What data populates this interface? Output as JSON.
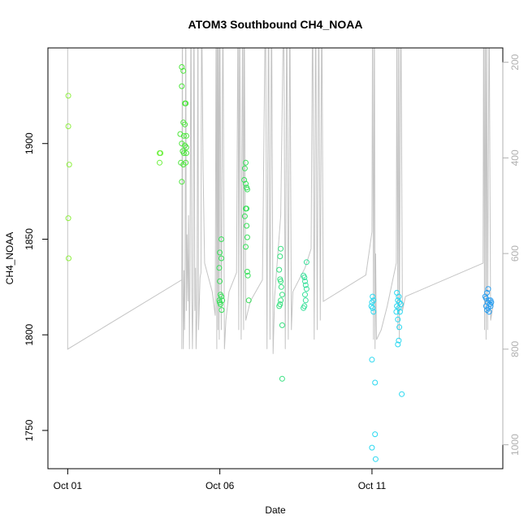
{
  "chart_data": {
    "type": "scatter",
    "title": "ATOM3 Southbound CH4_NOAA",
    "xlabel": "Date",
    "ylabel": "CH4_NOAA",
    "xlim": [
      -0.65,
      14.3
    ],
    "ylim": [
      1730,
      1950
    ],
    "y2lim": [
      1050,
      170
    ],
    "x_ticks": [
      {
        "value": 0,
        "label": "Oct 01"
      },
      {
        "value": 5,
        "label": "Oct 06"
      },
      {
        "value": 10,
        "label": "Oct 11"
      }
    ],
    "y_ticks": [
      {
        "value": 1750,
        "label": "1750"
      },
      {
        "value": 1800,
        "label": "1800"
      },
      {
        "value": 1850,
        "label": "1850"
      },
      {
        "value": 1900,
        "label": "1900"
      }
    ],
    "y2_ticks": [
      {
        "value": 200,
        "label": "200"
      },
      {
        "value": 400,
        "label": "400"
      },
      {
        "value": 600,
        "label": "600"
      },
      {
        "value": 800,
        "label": "800"
      },
      {
        "value": 1000,
        "label": "1000"
      }
    ],
    "pressure_trace": [
      [
        0,
        50
      ],
      [
        0,
        800
      ],
      [
        3.75,
        655
      ],
      [
        3.75,
        800
      ],
      [
        3.75,
        645
      ],
      [
        3.77,
        55
      ],
      [
        3.78,
        645
      ],
      [
        3.8,
        800
      ],
      [
        3.82,
        635
      ],
      [
        3.84,
        760
      ],
      [
        3.86,
        610
      ],
      [
        3.88,
        55
      ],
      [
        3.9,
        720
      ],
      [
        3.92,
        560
      ],
      [
        3.95,
        700
      ],
      [
        3.97,
        520
      ],
      [
        4.0,
        800
      ],
      [
        4.02,
        620
      ],
      [
        4.05,
        55
      ],
      [
        4.08,
        700
      ],
      [
        4.1,
        800
      ],
      [
        4.12,
        690
      ],
      [
        4.15,
        55
      ],
      [
        4.18,
        720
      ],
      [
        4.2,
        630
      ],
      [
        4.22,
        800
      ],
      [
        4.25,
        720
      ],
      [
        4.28,
        55
      ],
      [
        4.3,
        760
      ],
      [
        4.35,
        650
      ],
      [
        4.38,
        640
      ],
      [
        4.4,
        60
      ],
      [
        4.45,
        420
      ],
      [
        4.5,
        620
      ],
      [
        4.75,
        680
      ],
      [
        4.85,
        730
      ],
      [
        4.88,
        55
      ],
      [
        4.9,
        800
      ],
      [
        4.92,
        55
      ],
      [
        4.94,
        760
      ],
      [
        4.96,
        55
      ],
      [
        4.98,
        780
      ],
      [
        5.0,
        55
      ],
      [
        5.05,
        760
      ],
      [
        5.1,
        55
      ],
      [
        5.15,
        800
      ],
      [
        5.2,
        740
      ],
      [
        5.3,
        680
      ],
      [
        5.55,
        640
      ],
      [
        5.6,
        55
      ],
      [
        5.62,
        760
      ],
      [
        5.65,
        55
      ],
      [
        5.7,
        780
      ],
      [
        5.75,
        55
      ],
      [
        5.78,
        760
      ],
      [
        5.8,
        55
      ],
      [
        5.85,
        740
      ],
      [
        6.0,
        700
      ],
      [
        6.4,
        655
      ],
      [
        6.5,
        55
      ],
      [
        6.55,
        800
      ],
      [
        6.6,
        55
      ],
      [
        6.65,
        780
      ],
      [
        6.7,
        55
      ],
      [
        6.75,
        810
      ],
      [
        6.8,
        690
      ],
      [
        7.0,
        520
      ],
      [
        7.1,
        55
      ],
      [
        7.15,
        800
      ],
      [
        7.2,
        55
      ],
      [
        7.25,
        780
      ],
      [
        7.3,
        55
      ],
      [
        7.35,
        760
      ],
      [
        7.4,
        680
      ],
      [
        7.8,
        630
      ],
      [
        8.0,
        590
      ],
      [
        8.05,
        55
      ],
      [
        8.1,
        780
      ],
      [
        8.15,
        55
      ],
      [
        8.2,
        760
      ],
      [
        8.25,
        55
      ],
      [
        8.3,
        740
      ],
      [
        8.35,
        55
      ],
      [
        8.4,
        700
      ],
      [
        9.8,
        645
      ],
      [
        10.0,
        555
      ],
      [
        10.02,
        55
      ],
      [
        10.05,
        780
      ],
      [
        10.08,
        55
      ],
      [
        10.1,
        800
      ],
      [
        10.12,
        600
      ],
      [
        10.15,
        780
      ],
      [
        10.3,
        760
      ],
      [
        10.5,
        710
      ],
      [
        10.8,
        620
      ],
      [
        10.82,
        55
      ],
      [
        10.85,
        760
      ],
      [
        10.88,
        55
      ],
      [
        10.9,
        780
      ],
      [
        10.95,
        55
      ],
      [
        11.0,
        720
      ],
      [
        11.1,
        690
      ],
      [
        13.65,
        620
      ],
      [
        13.67,
        55
      ],
      [
        13.7,
        760
      ],
      [
        13.72,
        55
      ],
      [
        13.75,
        780
      ],
      [
        13.77,
        55
      ],
      [
        13.8,
        760
      ],
      [
        13.85,
        55
      ],
      [
        13.9,
        740
      ],
      [
        14.0,
        700
      ]
    ],
    "series": [
      {
        "name": "CH4_NOAA",
        "points": [
          [
            0.02,
            1925,
            "#8ff040"
          ],
          [
            0.02,
            1909,
            "#8ff040"
          ],
          [
            0.05,
            1889,
            "#8ff040"
          ],
          [
            0.02,
            1861,
            "#8ff040"
          ],
          [
            0.03,
            1840,
            "#8ff040"
          ],
          [
            3.02,
            1895,
            "#6ff040"
          ],
          [
            3.02,
            1890,
            "#6ff040"
          ],
          [
            3.05,
            1895,
            "#6ff040"
          ],
          [
            3.75,
            1940,
            "#4de63c"
          ],
          [
            3.8,
            1938,
            "#4de63c"
          ],
          [
            3.85,
            1921,
            "#4de63c"
          ],
          [
            3.88,
            1921,
            "#4de63c"
          ],
          [
            3.75,
            1930,
            "#4de63c"
          ],
          [
            3.8,
            1911,
            "#4de63c"
          ],
          [
            3.85,
            1910,
            "#4de63c"
          ],
          [
            3.7,
            1905,
            "#4de63c"
          ],
          [
            3.82,
            1904,
            "#4de63c"
          ],
          [
            3.9,
            1904,
            "#4de63c"
          ],
          [
            3.75,
            1900,
            "#4de63c"
          ],
          [
            3.85,
            1899,
            "#4de63c"
          ],
          [
            3.9,
            1898,
            "#4de63c"
          ],
          [
            3.78,
            1896,
            "#4de63c"
          ],
          [
            3.82,
            1895,
            "#4de63c"
          ],
          [
            3.9,
            1895,
            "#4de63c"
          ],
          [
            3.72,
            1890,
            "#4de63c"
          ],
          [
            3.88,
            1890,
            "#4de63c"
          ],
          [
            3.8,
            1889,
            "#4de63c"
          ],
          [
            3.75,
            1880,
            "#4de63c"
          ],
          [
            5.05,
            1850,
            "#38e05a"
          ],
          [
            5.0,
            1843,
            "#38e05a"
          ],
          [
            5.05,
            1840,
            "#38e05a"
          ],
          [
            4.98,
            1835,
            "#38e05a"
          ],
          [
            5.0,
            1828,
            "#38e05a"
          ],
          [
            5.02,
            1821,
            "#38e05a"
          ],
          [
            5.05,
            1820,
            "#38e05a"
          ],
          [
            4.98,
            1818,
            "#38e05a"
          ],
          [
            5.0,
            1817,
            "#38e05a"
          ],
          [
            5.02,
            1816,
            "#38e05a"
          ],
          [
            5.06,
            1813,
            "#38e05a"
          ],
          [
            5.08,
            1818,
            "#38e05a"
          ],
          [
            5.85,
            1890,
            "#38e05a"
          ],
          [
            5.82,
            1887,
            "#38e05a"
          ],
          [
            5.8,
            1881,
            "#38e05a"
          ],
          [
            5.85,
            1879,
            "#38e05a"
          ],
          [
            5.88,
            1877,
            "#38e05a"
          ],
          [
            5.9,
            1876,
            "#38e05a"
          ],
          [
            5.85,
            1866,
            "#38e05a"
          ],
          [
            5.88,
            1866,
            "#38e05a"
          ],
          [
            5.82,
            1862,
            "#38e05a"
          ],
          [
            5.88,
            1857,
            "#38e05a"
          ],
          [
            5.9,
            1851,
            "#38e05a"
          ],
          [
            5.85,
            1846,
            "#38e05a"
          ],
          [
            5.9,
            1833,
            "#38e05a"
          ],
          [
            5.92,
            1831,
            "#38e05a"
          ],
          [
            5.95,
            1818,
            "#38e05a"
          ],
          [
            7.0,
            1845,
            "#38e080"
          ],
          [
            6.98,
            1841,
            "#38e080"
          ],
          [
            6.95,
            1834,
            "#38e080"
          ],
          [
            6.98,
            1829,
            "#38e080"
          ],
          [
            7.0,
            1828,
            "#38e080"
          ],
          [
            7.02,
            1825,
            "#38e080"
          ],
          [
            7.05,
            1821,
            "#38e080"
          ],
          [
            7.0,
            1818,
            "#38e080"
          ],
          [
            6.98,
            1816,
            "#38e080"
          ],
          [
            6.95,
            1815,
            "#38e080"
          ],
          [
            7.05,
            1805,
            "#38e080"
          ],
          [
            7.05,
            1777,
            "#38e080"
          ],
          [
            7.85,
            1838,
            "#38e09a"
          ],
          [
            7.75,
            1831,
            "#38e09a"
          ],
          [
            7.78,
            1830,
            "#38e09a"
          ],
          [
            7.8,
            1828,
            "#38e09a"
          ],
          [
            7.82,
            1826,
            "#38e09a"
          ],
          [
            7.85,
            1824,
            "#38e09a"
          ],
          [
            7.8,
            1821,
            "#38e09a"
          ],
          [
            7.82,
            1818,
            "#38e09a"
          ],
          [
            7.78,
            1815,
            "#38e09a"
          ],
          [
            7.75,
            1814,
            "#38e09a"
          ],
          [
            10.02,
            1820,
            "#2ad8f0"
          ],
          [
            10.05,
            1818,
            "#2ad8f0"
          ],
          [
            10.0,
            1817,
            "#2ad8f0"
          ],
          [
            9.98,
            1815,
            "#2ad8f0"
          ],
          [
            10.02,
            1814,
            "#2ad8f0"
          ],
          [
            10.05,
            1812,
            "#2ad8f0"
          ],
          [
            10.0,
            1787,
            "#2ad8f0"
          ],
          [
            10.1,
            1775,
            "#2ad8f0"
          ],
          [
            10.1,
            1748,
            "#2ad8f0"
          ],
          [
            10.0,
            1741,
            "#2ad8f0"
          ],
          [
            10.12,
            1735,
            "#2ad8f0"
          ],
          [
            10.82,
            1822,
            "#2ad8f0"
          ],
          [
            10.88,
            1820,
            "#2ad8f0"
          ],
          [
            10.85,
            1818,
            "#2ad8f0"
          ],
          [
            10.9,
            1817,
            "#2ad8f0"
          ],
          [
            10.95,
            1816,
            "#2ad8f0"
          ],
          [
            10.82,
            1815,
            "#2ad8f0"
          ],
          [
            10.88,
            1814,
            "#2ad8f0"
          ],
          [
            10.92,
            1812,
            "#2ad8f0"
          ],
          [
            10.85,
            1808,
            "#2ad8f0"
          ],
          [
            10.9,
            1804,
            "#2ad8f0"
          ],
          [
            10.88,
            1797,
            "#2ad8f0"
          ],
          [
            10.85,
            1795,
            "#2ad8f0"
          ],
          [
            10.8,
            1812,
            "#2ad8f0"
          ],
          [
            10.98,
            1769,
            "#2ad8f0"
          ],
          [
            13.82,
            1824,
            "#2a9ef0"
          ],
          [
            13.78,
            1822,
            "#2a9ef0"
          ],
          [
            13.72,
            1820,
            "#2a9ef0"
          ],
          [
            13.75,
            1819,
            "#2a9ef0"
          ],
          [
            13.85,
            1818,
            "#2a9ef0"
          ],
          [
            13.9,
            1818,
            "#2a9ef0"
          ],
          [
            13.8,
            1817,
            "#2a9ef0"
          ],
          [
            13.88,
            1816,
            "#2a9ef0"
          ],
          [
            13.75,
            1815,
            "#2a9ef0"
          ],
          [
            13.82,
            1814,
            "#2a9ef0"
          ],
          [
            13.9,
            1815,
            "#2a9ef0"
          ],
          [
            13.78,
            1813,
            "#2a9ef0"
          ],
          [
            13.85,
            1812,
            "#2a9ef0"
          ],
          [
            13.92,
            1817,
            "#2a9ef0"
          ]
        ]
      }
    ],
    "grid": false,
    "legend": "none"
  }
}
